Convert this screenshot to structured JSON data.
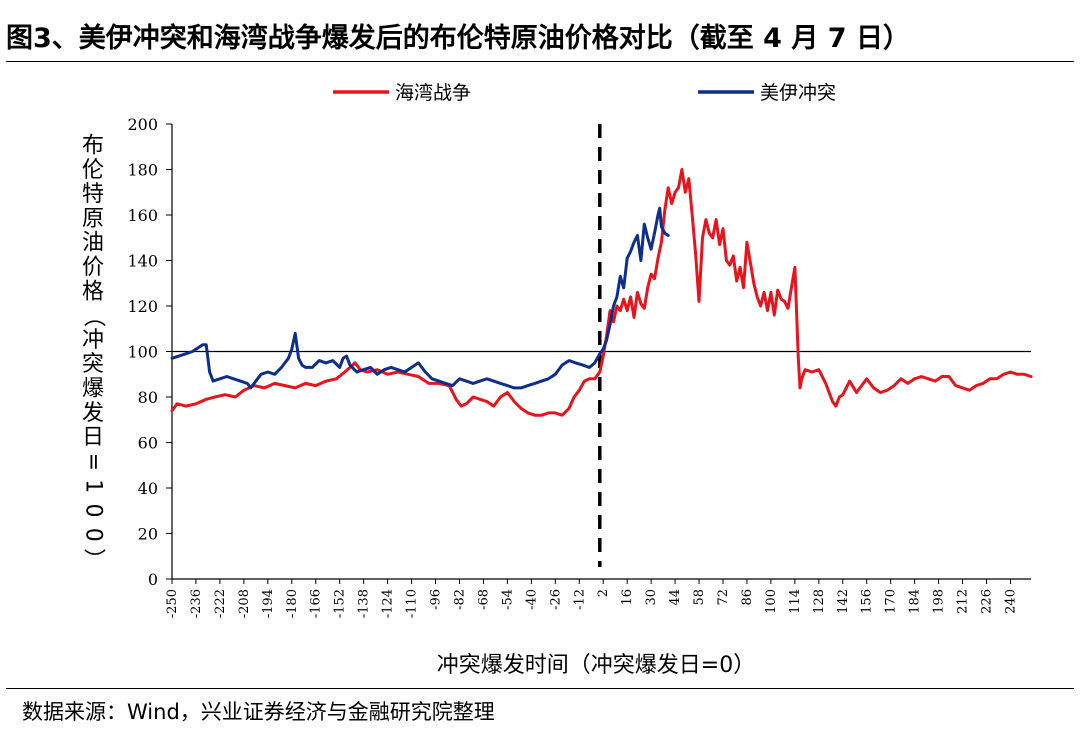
{
  "title": "图3、美伊冲突和海湾战争爆发后的布伦特原油价格对比（截至 4 月 7 日）",
  "source": "数据来源：Wind，兴业证券经济与金融研究院整理",
  "chart_data": {
    "type": "line",
    "xlabel": "冲突爆发时间（冲突爆发日=0）",
    "ylabel": "布伦特原油价格（冲突爆发日=100）",
    "ylim": [
      0,
      200
    ],
    "yticks": [
      0,
      20,
      40,
      60,
      80,
      100,
      120,
      140,
      160,
      180,
      200
    ],
    "xlim": [
      -250,
      252
    ],
    "xticks": [
      -250,
      -236,
      -222,
      -208,
      -194,
      -180,
      -166,
      -152,
      -138,
      -124,
      -110,
      -96,
      -82,
      -68,
      -54,
      -40,
      -26,
      -12,
      2,
      16,
      30,
      44,
      58,
      72,
      86,
      100,
      114,
      128,
      142,
      156,
      170,
      184,
      198,
      212,
      226,
      240
    ],
    "reference_line_y": 100,
    "event_line_x": 0,
    "legend_position": "top",
    "colors": {
      "gulf_war": "#e8141c",
      "us_iran": "#0d2e8c",
      "event_line": "#000000"
    },
    "series": [
      {
        "name": "海湾战争",
        "color": "#e8141c",
        "points": [
          [
            -250,
            74
          ],
          [
            -247,
            77
          ],
          [
            -242,
            76
          ],
          [
            -236,
            77
          ],
          [
            -230,
            79
          ],
          [
            -225,
            80
          ],
          [
            -219,
            81
          ],
          [
            -213,
            80
          ],
          [
            -208,
            83
          ],
          [
            -202,
            85
          ],
          [
            -196,
            84
          ],
          [
            -190,
            86
          ],
          [
            -184,
            85
          ],
          [
            -178,
            84
          ],
          [
            -172,
            86
          ],
          [
            -166,
            85
          ],
          [
            -160,
            87
          ],
          [
            -154,
            88
          ],
          [
            -149,
            91
          ],
          [
            -146,
            93
          ],
          [
            -143,
            95
          ],
          [
            -140,
            92
          ],
          [
            -136,
            91
          ],
          [
            -130,
            92
          ],
          [
            -124,
            90
          ],
          [
            -118,
            91
          ],
          [
            -112,
            90
          ],
          [
            -106,
            89
          ],
          [
            -100,
            86
          ],
          [
            -94,
            86
          ],
          [
            -88,
            85
          ],
          [
            -84,
            79
          ],
          [
            -81,
            76
          ],
          [
            -78,
            77
          ],
          [
            -74,
            80
          ],
          [
            -70,
            79
          ],
          [
            -66,
            78
          ],
          [
            -62,
            76
          ],
          [
            -58,
            80
          ],
          [
            -54,
            82
          ],
          [
            -50,
            78
          ],
          [
            -46,
            75
          ],
          [
            -42,
            73
          ],
          [
            -38,
            72
          ],
          [
            -34,
            72
          ],
          [
            -30,
            73
          ],
          [
            -26,
            73
          ],
          [
            -22,
            72
          ],
          [
            -18,
            75
          ],
          [
            -15,
            80
          ],
          [
            -12,
            83
          ],
          [
            -9,
            87
          ],
          [
            -6,
            88
          ],
          [
            -3,
            88
          ],
          [
            0,
            91
          ],
          [
            2,
            98
          ],
          [
            4,
            107
          ],
          [
            6,
            118
          ],
          [
            8,
            113
          ],
          [
            10,
            120
          ],
          [
            12,
            118
          ],
          [
            14,
            123
          ],
          [
            16,
            118
          ],
          [
            18,
            124
          ],
          [
            20,
            115
          ],
          [
            22,
            126
          ],
          [
            24,
            121
          ],
          [
            26,
            119
          ],
          [
            28,
            128
          ],
          [
            30,
            134
          ],
          [
            32,
            132
          ],
          [
            34,
            141
          ],
          [
            36,
            148
          ],
          [
            38,
            162
          ],
          [
            40,
            172
          ],
          [
            42,
            165
          ],
          [
            44,
            170
          ],
          [
            46,
            172
          ],
          [
            48,
            180
          ],
          [
            50,
            170
          ],
          [
            52,
            176
          ],
          [
            54,
            160
          ],
          [
            56,
            143
          ],
          [
            58,
            122
          ],
          [
            60,
            150
          ],
          [
            62,
            158
          ],
          [
            64,
            152
          ],
          [
            66,
            150
          ],
          [
            68,
            158
          ],
          [
            70,
            147
          ],
          [
            72,
            154
          ],
          [
            74,
            140
          ],
          [
            76,
            138
          ],
          [
            78,
            142
          ],
          [
            80,
            131
          ],
          [
            82,
            137
          ],
          [
            84,
            128
          ],
          [
            86,
            148
          ],
          [
            88,
            139
          ],
          [
            90,
            130
          ],
          [
            92,
            124
          ],
          [
            94,
            120
          ],
          [
            96,
            126
          ],
          [
            98,
            118
          ],
          [
            100,
            126
          ],
          [
            102,
            116
          ],
          [
            104,
            127
          ],
          [
            106,
            123
          ],
          [
            108,
            122
          ],
          [
            110,
            119
          ],
          [
            112,
            128
          ],
          [
            114,
            137
          ],
          [
            116,
            97
          ],
          [
            117,
            84
          ],
          [
            118,
            88
          ],
          [
            120,
            92
          ],
          [
            124,
            91
          ],
          [
            128,
            92
          ],
          [
            132,
            86
          ],
          [
            136,
            78
          ],
          [
            138,
            76
          ],
          [
            140,
            80
          ],
          [
            142,
            81
          ],
          [
            146,
            87
          ],
          [
            150,
            82
          ],
          [
            154,
            86
          ],
          [
            156,
            88
          ],
          [
            160,
            84
          ],
          [
            164,
            82
          ],
          [
            168,
            83
          ],
          [
            172,
            85
          ],
          [
            176,
            88
          ],
          [
            180,
            86
          ],
          [
            184,
            88
          ],
          [
            188,
            89
          ],
          [
            192,
            88
          ],
          [
            196,
            87
          ],
          [
            200,
            89
          ],
          [
            204,
            89
          ],
          [
            208,
            85
          ],
          [
            212,
            84
          ],
          [
            216,
            83
          ],
          [
            220,
            85
          ],
          [
            224,
            86
          ],
          [
            228,
            88
          ],
          [
            232,
            88
          ],
          [
            236,
            90
          ],
          [
            240,
            91
          ],
          [
            244,
            90
          ],
          [
            248,
            90
          ],
          [
            252,
            89
          ]
        ]
      },
      {
        "name": "美伊冲突",
        "color": "#0d2e8c",
        "points": [
          [
            -250,
            97
          ],
          [
            -246,
            98
          ],
          [
            -242,
            99
          ],
          [
            -238,
            100
          ],
          [
            -234,
            102
          ],
          [
            -232,
            103
          ],
          [
            -230,
            103
          ],
          [
            -228,
            91
          ],
          [
            -226,
            87
          ],
          [
            -222,
            88
          ],
          [
            -218,
            89
          ],
          [
            -214,
            88
          ],
          [
            -210,
            87
          ],
          [
            -206,
            86
          ],
          [
            -204,
            84
          ],
          [
            -202,
            86
          ],
          [
            -198,
            90
          ],
          [
            -194,
            91
          ],
          [
            -190,
            90
          ],
          [
            -186,
            93
          ],
          [
            -184,
            95
          ],
          [
            -182,
            97
          ],
          [
            -180,
            101
          ],
          [
            -178,
            108
          ],
          [
            -176,
            97
          ],
          [
            -174,
            94
          ],
          [
            -172,
            93
          ],
          [
            -168,
            93
          ],
          [
            -164,
            96
          ],
          [
            -160,
            95
          ],
          [
            -156,
            96
          ],
          [
            -152,
            93
          ],
          [
            -150,
            97
          ],
          [
            -148,
            98
          ],
          [
            -146,
            94
          ],
          [
            -142,
            91
          ],
          [
            -138,
            92
          ],
          [
            -134,
            93
          ],
          [
            -130,
            90
          ],
          [
            -126,
            92
          ],
          [
            -122,
            93
          ],
          [
            -118,
            92
          ],
          [
            -114,
            91
          ],
          [
            -110,
            93
          ],
          [
            -106,
            95
          ],
          [
            -102,
            91
          ],
          [
            -98,
            88
          ],
          [
            -94,
            87
          ],
          [
            -90,
            86
          ],
          [
            -86,
            85
          ],
          [
            -82,
            88
          ],
          [
            -78,
            87
          ],
          [
            -74,
            86
          ],
          [
            -70,
            87
          ],
          [
            -66,
            88
          ],
          [
            -62,
            87
          ],
          [
            -58,
            86
          ],
          [
            -54,
            85
          ],
          [
            -50,
            84
          ],
          [
            -46,
            84
          ],
          [
            -42,
            85
          ],
          [
            -38,
            86
          ],
          [
            -34,
            87
          ],
          [
            -30,
            88
          ],
          [
            -26,
            90
          ],
          [
            -22,
            94
          ],
          [
            -18,
            96
          ],
          [
            -14,
            95
          ],
          [
            -10,
            94
          ],
          [
            -6,
            93
          ],
          [
            -3,
            95
          ],
          [
            0,
            99
          ],
          [
            2,
            101
          ],
          [
            4,
            105
          ],
          [
            6,
            112
          ],
          [
            8,
            120
          ],
          [
            10,
            124
          ],
          [
            12,
            133
          ],
          [
            14,
            128
          ],
          [
            16,
            141
          ],
          [
            18,
            144
          ],
          [
            20,
            148
          ],
          [
            22,
            151
          ],
          [
            24,
            140
          ],
          [
            26,
            156
          ],
          [
            28,
            150
          ],
          [
            30,
            145
          ],
          [
            32,
            152
          ],
          [
            34,
            160
          ],
          [
            35,
            163
          ],
          [
            36,
            155
          ],
          [
            38,
            152
          ],
          [
            40,
            151
          ]
        ]
      }
    ]
  }
}
